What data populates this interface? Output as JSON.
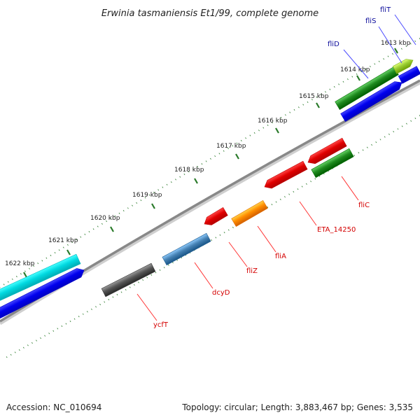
{
  "title": "Erwinia tasmaniensis Et1/99, complete genome",
  "footer": {
    "accession": "Accession: NC_010694",
    "summary": "Topology: circular; Length: 3,883,467 bp; Genes: 3,535"
  },
  "colors": {
    "backbone": "#888888",
    "tick": "#2a7a2a",
    "label_forward": "#0a0a9a",
    "label_reverse": "#d40000",
    "leader_forward": "#4a4aff",
    "leader_reverse": "#ff3333"
  },
  "ticks": [
    {
      "label": "1613 kbp"
    },
    {
      "label": "1614 kbp"
    },
    {
      "label": "1615 kbp"
    },
    {
      "label": "1616 kbp"
    },
    {
      "label": "1617 kbp"
    },
    {
      "label": "1618 kbp"
    },
    {
      "label": "1619 kbp"
    },
    {
      "label": "1620 kbp"
    },
    {
      "label": "1621 kbp"
    },
    {
      "label": "1622 kbp"
    }
  ],
  "features": [
    {
      "name": "",
      "color": "#00d8e0",
      "strand": "outer-forward"
    },
    {
      "name": "",
      "color": "#0000ee",
      "strand": "forward"
    },
    {
      "name": "fliD",
      "color": "#1e8a1e",
      "strand": "outer-forward"
    },
    {
      "name": "fliS",
      "color": "#9acd32",
      "strand": "outer-forward"
    },
    {
      "name": "fliT",
      "color": "#0000ee",
      "strand": "forward"
    },
    {
      "name": "",
      "color": "#0000ee",
      "strand": "forward"
    },
    {
      "name": "ycfT",
      "color": "#555555",
      "strand": "reverse"
    },
    {
      "name": "dcyD",
      "color": "#4682b4",
      "strand": "reverse"
    },
    {
      "name": "fliZ",
      "color": "#e00000",
      "strand": "reverse"
    },
    {
      "name": "fliA",
      "color": "#ff8c00",
      "strand": "reverse"
    },
    {
      "name": "ETA_14250",
      "color": "#e00000",
      "strand": "reverse"
    },
    {
      "name": "fliC",
      "color": "#1e8a1e",
      "strand": "reverse"
    },
    {
      "name": "",
      "color": "#e00000",
      "strand": "inner-reverse"
    }
  ]
}
